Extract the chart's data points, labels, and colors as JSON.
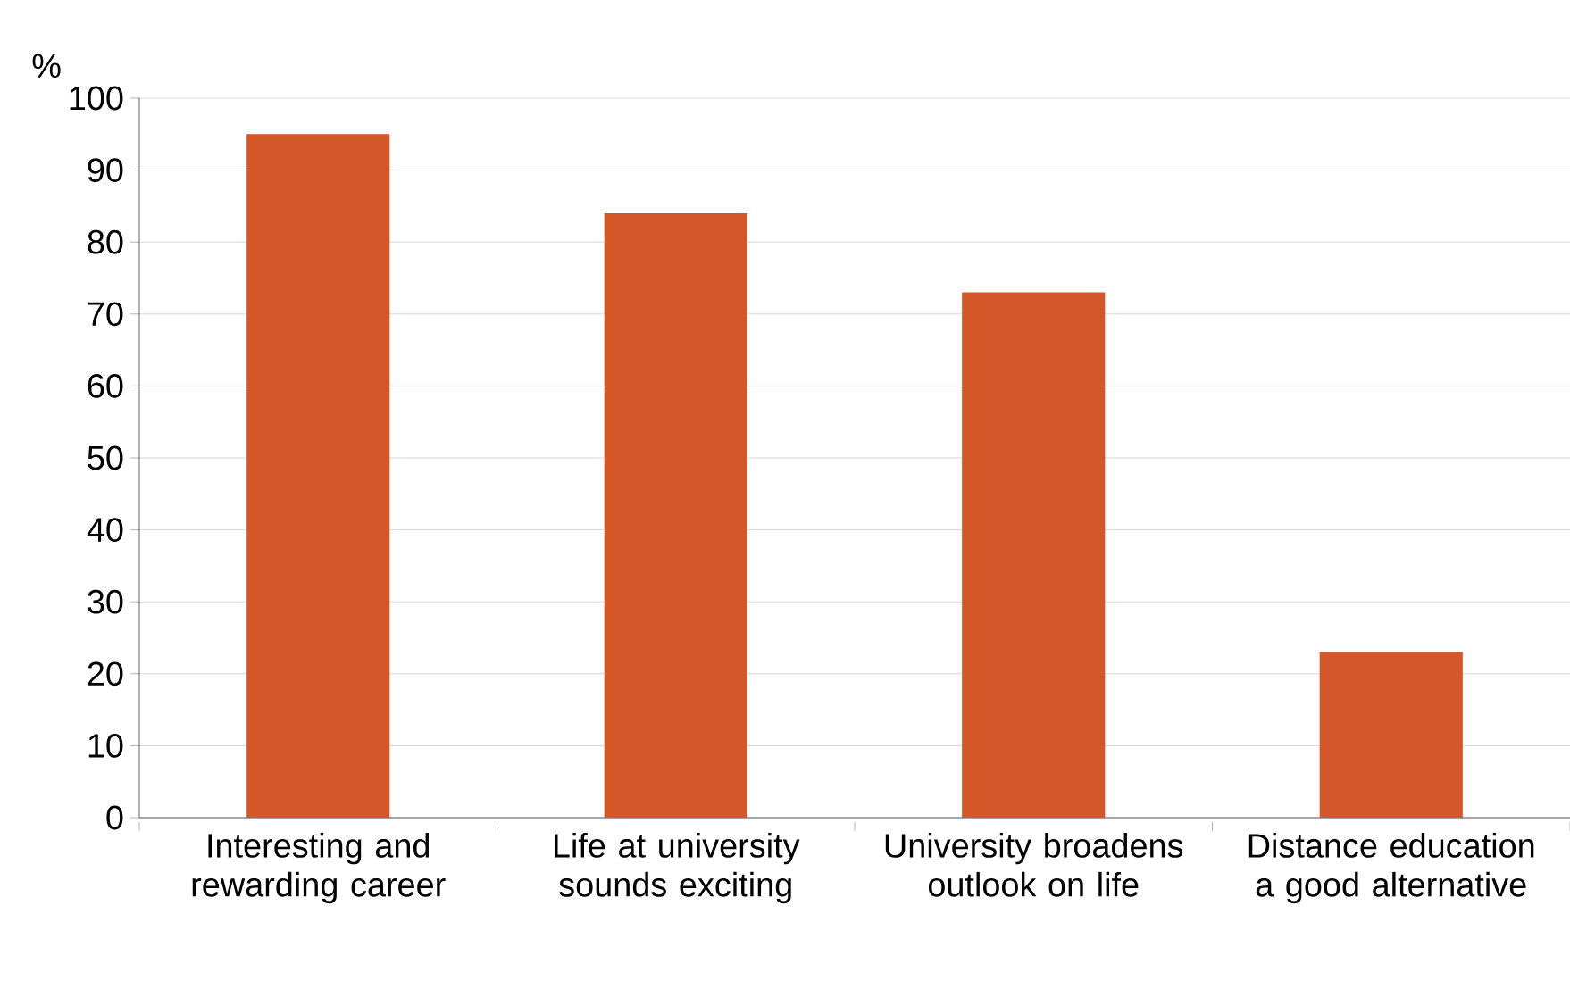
{
  "chart_data": {
    "type": "bar",
    "ylabel": "%",
    "categories": [
      "Interesting and rewarding career",
      "Life at university sounds exciting",
      "University broadens outlook on life",
      "Distance education a good alternative"
    ],
    "values": [
      95,
      84,
      73,
      23
    ],
    "color": "#d4572a",
    "ylim": [
      0,
      100
    ],
    "yticks": [
      0,
      10,
      20,
      30,
      40,
      50,
      60,
      70,
      80,
      90,
      100
    ],
    "grid": "y"
  }
}
